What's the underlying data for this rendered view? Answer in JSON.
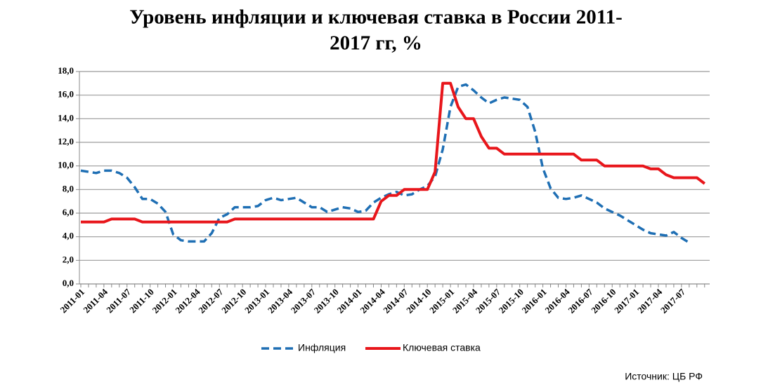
{
  "chart_data": {
    "type": "line",
    "title": [
      "Уровень инфляции и ключевая ставка в России 2011-",
      "2017 гг, %"
    ],
    "source": "Источник: ЦБ РФ",
    "categories": [
      "2011-01",
      null,
      null,
      "2011-04",
      null,
      null,
      "2011-07",
      null,
      null,
      "2011-10",
      null,
      null,
      "2012-01",
      null,
      null,
      "2012-04",
      null,
      null,
      "2012-07",
      null,
      null,
      "2012-10",
      null,
      null,
      "2013-01",
      null,
      null,
      "2013-04",
      null,
      null,
      "2013-07",
      null,
      null,
      "2013-10",
      null,
      null,
      "2014-01",
      null,
      null,
      "2014-04",
      null,
      null,
      "2014-07",
      null,
      null,
      "2014-10",
      null,
      null,
      "2015-01",
      null,
      null,
      "2015-04",
      null,
      null,
      "2015-07",
      null,
      null,
      "2015-10",
      null,
      null,
      "2016-01",
      null,
      null,
      "2016-04",
      null,
      null,
      "2016-07",
      null,
      null,
      "2016-10",
      null,
      null,
      "2017-01",
      null,
      null,
      "2017-04",
      null,
      null,
      "2017-07",
      null,
      null,
      null
    ],
    "series": [
      {
        "name": "Инфляция",
        "color": "#1f6fb4",
        "dash": true,
        "values": [
          9.6,
          9.5,
          9.4,
          9.6,
          9.6,
          9.4,
          9.0,
          8.2,
          7.2,
          7.2,
          6.8,
          6.1,
          4.2,
          3.7,
          3.6,
          3.6,
          3.6,
          4.3,
          5.6,
          5.9,
          6.5,
          6.5,
          6.5,
          6.6,
          7.1,
          7.3,
          7.1,
          7.2,
          7.3,
          6.9,
          6.5,
          6.5,
          6.1,
          6.3,
          6.5,
          6.4,
          6.1,
          6.2,
          6.9,
          7.3,
          7.6,
          7.8,
          7.5,
          7.6,
          8.0,
          8.3,
          9.1,
          11.4,
          15.0,
          16.7,
          16.9,
          16.4,
          15.8,
          15.3,
          15.6,
          15.8,
          15.7,
          15.6,
          15.0,
          12.9,
          9.8,
          8.1,
          7.3,
          7.2,
          7.3,
          7.5,
          7.2,
          6.9,
          6.4,
          6.1,
          5.8,
          5.4,
          5.0,
          4.6,
          4.3,
          4.2,
          4.1,
          4.4,
          3.9,
          3.5,
          null,
          null
        ]
      },
      {
        "name": "Ключевая ставка",
        "color": "#e8161b",
        "dash": false,
        "values": [
          5.25,
          5.25,
          5.25,
          5.25,
          5.5,
          5.5,
          5.5,
          5.5,
          5.25,
          5.25,
          5.25,
          5.25,
          5.25,
          5.25,
          5.25,
          5.25,
          5.25,
          5.25,
          5.25,
          5.25,
          5.5,
          5.5,
          5.5,
          5.5,
          5.5,
          5.5,
          5.5,
          5.5,
          5.5,
          5.5,
          5.5,
          5.5,
          5.5,
          5.5,
          5.5,
          5.5,
          5.5,
          5.5,
          5.5,
          7.0,
          7.5,
          7.5,
          8.0,
          8.0,
          8.0,
          8.0,
          9.5,
          17,
          17,
          15,
          14,
          14,
          12.5,
          11.5,
          11.5,
          11,
          11,
          11,
          11,
          11,
          11,
          11,
          11,
          11,
          11,
          10.5,
          10.5,
          10.5,
          10,
          10,
          10,
          10,
          10,
          10,
          9.75,
          9.75,
          9.25,
          9,
          9,
          9,
          9,
          8.5
        ]
      }
    ],
    "ylim": [
      0,
      18
    ],
    "yticks": [
      {
        "value": 0,
        "label": "0,0"
      },
      {
        "value": 2,
        "label": "2,0"
      },
      {
        "value": 4,
        "label": "4,0"
      },
      {
        "value": 6,
        "label": "6,0"
      },
      {
        "value": 8,
        "label": "8,0"
      },
      {
        "value": 10,
        "label": "10,0"
      },
      {
        "value": 12,
        "label": "12,0"
      },
      {
        "value": 14,
        "label": "14,0"
      },
      {
        "value": 16,
        "label": "16,0"
      },
      {
        "value": 18,
        "label": "18,0"
      }
    ],
    "grid": true
  }
}
